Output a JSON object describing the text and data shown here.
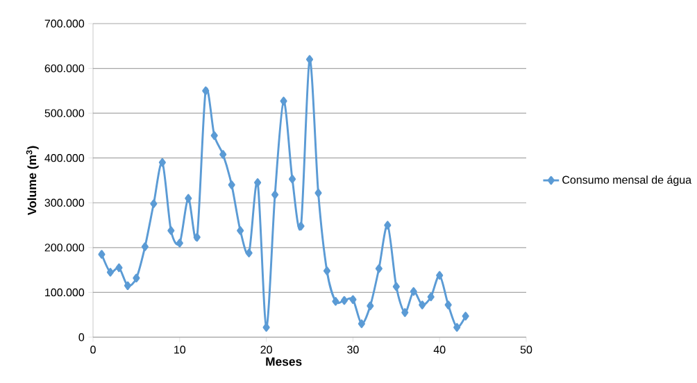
{
  "chart_data": {
    "type": "line",
    "xlabel": "Meses",
    "ylabel": "Volume (m$^{3}$)",
    "x": [
      1,
      2,
      3,
      4,
      5,
      6,
      7,
      8,
      9,
      10,
      11,
      12,
      13,
      14,
      15,
      16,
      17,
      18,
      19,
      20,
      21,
      22,
      23,
      24,
      25,
      26,
      27,
      28,
      29,
      30,
      31,
      32,
      33,
      34,
      35,
      36,
      37,
      38,
      39,
      40,
      41,
      42,
      43
    ],
    "series": [
      {
        "name": "Consumo mensal de água",
        "color": "#5b9bd5",
        "values": [
          185000,
          145000,
          155000,
          115000,
          132000,
          202000,
          298000,
          390000,
          238000,
          210000,
          310000,
          223000,
          550000,
          450000,
          408000,
          340000,
          238000,
          188000,
          345000,
          22000,
          318000,
          527000,
          353000,
          248000,
          620000,
          322000,
          148000,
          80000,
          82000,
          84000,
          30000,
          70000,
          153000,
          250000,
          113000,
          55000,
          102000,
          72000,
          90000,
          138000,
          72000,
          22000,
          47000
        ]
      }
    ],
    "xlim": [
      0,
      50
    ],
    "xticks": [
      0,
      10,
      20,
      30,
      40,
      50
    ],
    "ylim": [
      0,
      700000
    ],
    "yticks": [
      0,
      {
        "value": 100000,
        "label": "100.000"
      },
      {
        "value": 200000,
        "label": "200.000"
      },
      {
        "value": 300000,
        "label": "300.000"
      },
      {
        "value": 400000,
        "label": "400.000"
      },
      {
        "value": 500000,
        "label": "500.000"
      },
      {
        "value": 600000,
        "label": "600.000"
      },
      {
        "value": 700000,
        "label": "700.000"
      }
    ],
    "grid": "y",
    "legend": "right",
    "marker": "diamond",
    "line_style": "solid"
  }
}
